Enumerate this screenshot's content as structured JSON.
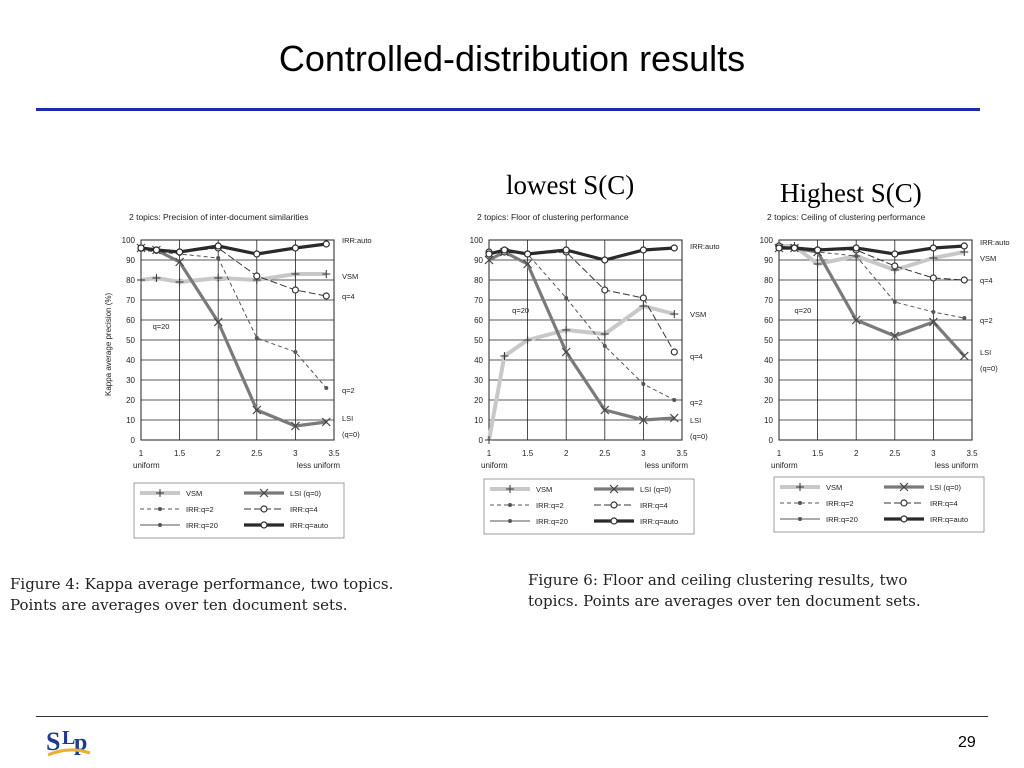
{
  "slide": {
    "title": "Controlled-distribution results",
    "annotation_lowest": "lowest S(C)",
    "annotation_highest": "Highest S(C)",
    "caption_left": [
      "Figure 4:  Kappa average performance, two topics.",
      "Points are averages over ten document sets."
    ],
    "caption_right": [
      "Figure 6:  Floor and ceiling clustering results, two",
      "topics. Points are averages over ten document sets."
    ],
    "page_number": "29",
    "logo_text": "SLP"
  },
  "chart_data": [
    {
      "type": "line",
      "title": "2 topics: Precision of inter-document similarities",
      "ylabel": "Kappa average precision (%)",
      "xlim": [
        1,
        3.5
      ],
      "ylim": [
        0,
        100
      ],
      "x_ticks": [
        "1",
        "1.5",
        "2",
        "2.5",
        "3",
        "3.5"
      ],
      "y_ticks": [
        "0",
        "10",
        "20",
        "30",
        "40",
        "50",
        "60",
        "70",
        "80",
        "90",
        "100"
      ],
      "x_sub_left": "uniform",
      "x_sub_right": "less uniform",
      "grid": true,
      "series": [
        {
          "name": "VSM",
          "style": "vsm",
          "x": [
            1,
            1.2,
            1.5,
            2,
            2.5,
            3,
            3.4
          ],
          "y": [
            80,
            81,
            79,
            81,
            80,
            83,
            83
          ]
        },
        {
          "name": "LSI (q=0)",
          "style": "lsi",
          "x": [
            1,
            1.2,
            1.5,
            2,
            2.5,
            3,
            3.4
          ],
          "y": [
            96,
            95,
            89,
            59,
            15,
            7,
            9
          ]
        },
        {
          "name": "IRR:q=2",
          "style": "irr2",
          "x": [
            1,
            1.2,
            1.5,
            2,
            2.5,
            3,
            3.4
          ],
          "y": [
            95,
            94,
            93,
            91,
            51,
            44,
            26
          ]
        },
        {
          "name": "IRR:q=4",
          "style": "irr4",
          "x": [
            1,
            1.2,
            1.5,
            2,
            2.5,
            3,
            3.4
          ],
          "y": [
            96,
            95,
            94,
            96,
            82,
            75,
            72
          ]
        },
        {
          "name": "IRR:q=20",
          "style": "irr20"
        },
        {
          "name": "IRR:q=auto",
          "style": "irrauto",
          "x": [
            1,
            1.2,
            1.5,
            2,
            2.5,
            3,
            3.4
          ],
          "y": [
            96,
            95,
            94,
            97,
            93,
            96,
            98
          ]
        }
      ],
      "labels": [
        {
          "text": "IRR:auto",
          "x": 3.5,
          "y": 100
        },
        {
          "text": "VSM",
          "x": 3.5,
          "y": 82
        },
        {
          "text": "q=4",
          "x": 3.5,
          "y": 72
        },
        {
          "text": "q=20",
          "x": 1.15,
          "y": 57
        },
        {
          "text": "q=2",
          "x": 3.5,
          "y": 25
        },
        {
          "text": "LSI",
          "x": 3.5,
          "y": 11
        },
        {
          "text": "(q=0)",
          "x": 3.5,
          "y": 3
        }
      ],
      "legend": [
        "VSM",
        "LSI (q=0)",
        "IRR:q=2",
        "IRR:q=4",
        "IRR:q=20",
        "IRR:q=auto"
      ]
    },
    {
      "type": "line",
      "title": "2 topics: Floor of clustering performance",
      "xlim": [
        1,
        3.5
      ],
      "ylim": [
        0,
        100
      ],
      "x_ticks": [
        "1",
        "1.5",
        "2",
        "2.5",
        "3",
        "3.5"
      ],
      "y_ticks": [
        "0",
        "10",
        "20",
        "30",
        "40",
        "50",
        "60",
        "70",
        "80",
        "90",
        "100"
      ],
      "x_sub_left": "uniform",
      "x_sub_right": "less uniform",
      "grid": true,
      "series": [
        {
          "name": "VSM",
          "style": "vsm",
          "x": [
            1,
            1.2,
            1.5,
            2,
            2.5,
            3,
            3.4
          ],
          "y": [
            0,
            42,
            50,
            55,
            53,
            67,
            63
          ]
        },
        {
          "name": "LSI (q=0)",
          "style": "lsi",
          "x": [
            1,
            1.2,
            1.5,
            2,
            2.5,
            3,
            3.4
          ],
          "y": [
            90,
            94,
            88,
            44,
            15,
            10,
            11
          ]
        },
        {
          "name": "IRR:q=2",
          "style": "irr2",
          "x": [
            1,
            1.2,
            1.5,
            2,
            2.5,
            3,
            3.4
          ],
          "y": [
            93,
            94,
            93,
            71,
            47,
            28,
            20
          ]
        },
        {
          "name": "IRR:q=4",
          "style": "irr4",
          "x": [
            1,
            1.2,
            1.5,
            2,
            2.5,
            3,
            3.4
          ],
          "y": [
            94,
            94,
            93,
            94,
            75,
            71,
            44
          ]
        },
        {
          "name": "IRR:q=20",
          "style": "irr20"
        },
        {
          "name": "IRR:q=auto",
          "style": "irrauto",
          "x": [
            1,
            1.2,
            1.5,
            2,
            2.5,
            3,
            3.4
          ],
          "y": [
            93,
            95,
            93,
            95,
            90,
            95,
            96
          ]
        }
      ],
      "labels": [
        {
          "text": "IRR:auto",
          "x": 3.5,
          "y": 97
        },
        {
          "text": "q=20",
          "x": 1.3,
          "y": 65
        },
        {
          "text": "VSM",
          "x": 3.5,
          "y": 63
        },
        {
          "text": "q=4",
          "x": 3.5,
          "y": 42
        },
        {
          "text": "q=2",
          "x": 3.5,
          "y": 19
        },
        {
          "text": "LSI",
          "x": 3.5,
          "y": 10
        },
        {
          "text": "(q=0)",
          "x": 3.5,
          "y": 2
        }
      ],
      "legend": [
        "VSM",
        "LSI (q=0)",
        "IRR:q=2",
        "IRR:q=4",
        "IRR:q=20",
        "IRR:q=auto"
      ]
    },
    {
      "type": "line",
      "title": "2 topics: Ceiling of clustering performance",
      "xlim": [
        1,
        3.5
      ],
      "ylim": [
        0,
        100
      ],
      "x_ticks": [
        "1",
        "1.5",
        "2",
        "2.5",
        "3",
        "3.5"
      ],
      "y_ticks": [
        "0",
        "10",
        "20",
        "30",
        "40",
        "50",
        "60",
        "70",
        "80",
        "90",
        "100"
      ],
      "x_sub_left": "uniform",
      "x_sub_right": "less uniform",
      "grid": true,
      "series": [
        {
          "name": "VSM",
          "style": "vsm",
          "x": [
            1,
            1.2,
            1.5,
            2,
            2.5,
            3,
            3.4
          ],
          "y": [
            97,
            97,
            88,
            92,
            85,
            91,
            94
          ]
        },
        {
          "name": "LSI (q=0)",
          "style": "lsi",
          "x": [
            1,
            1.2,
            1.5,
            2,
            2.5,
            3,
            3.4
          ],
          "y": [
            96,
            96,
            94,
            60,
            52,
            59,
            42
          ]
        },
        {
          "name": "IRR:q=2",
          "style": "irr2",
          "x": [
            1,
            1.2,
            1.5,
            2,
            2.5,
            3,
            3.4
          ],
          "y": [
            96,
            96,
            94,
            92,
            69,
            64,
            61
          ]
        },
        {
          "name": "IRR:q=4",
          "style": "irr4",
          "x": [
            1,
            1.2,
            1.5,
            2,
            2.5,
            3,
            3.4
          ],
          "y": [
            97,
            96,
            95,
            95,
            87,
            81,
            80
          ]
        },
        {
          "name": "IRR:q=20",
          "style": "irr20"
        },
        {
          "name": "IRR:q=auto",
          "style": "irrauto",
          "x": [
            1,
            1.2,
            1.5,
            2,
            2.5,
            3,
            3.4
          ],
          "y": [
            96,
            96,
            95,
            96,
            93,
            96,
            97
          ]
        }
      ],
      "labels": [
        {
          "text": "IRR:auto",
          "x": 3.5,
          "y": 99
        },
        {
          "text": "VSM",
          "x": 3.5,
          "y": 91
        },
        {
          "text": "q=4",
          "x": 3.5,
          "y": 80
        },
        {
          "text": "q=20",
          "x": 1.2,
          "y": 65
        },
        {
          "text": "q=2",
          "x": 3.5,
          "y": 60
        },
        {
          "text": "LSI",
          "x": 3.5,
          "y": 44
        },
        {
          "text": "(q=0)",
          "x": 3.5,
          "y": 36
        }
      ],
      "legend": [
        "VSM",
        "LSI (q=0)",
        "IRR:q=2",
        "IRR:q=4",
        "IRR:q=20",
        "IRR:q=auto"
      ]
    }
  ]
}
